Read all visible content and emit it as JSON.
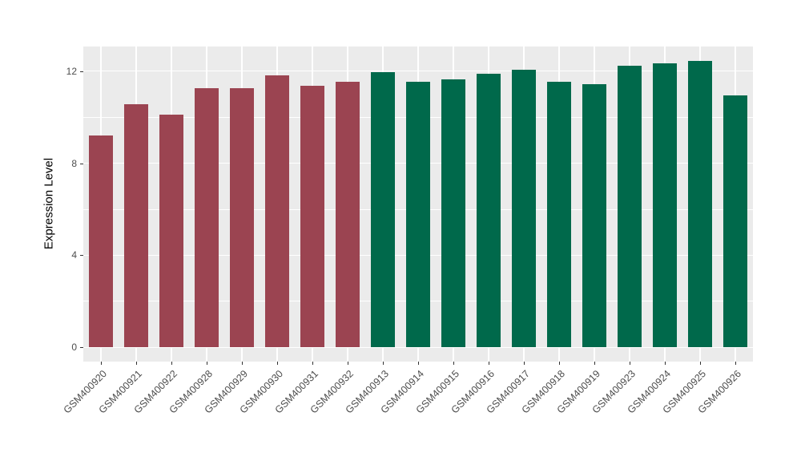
{
  "chart_data": {
    "type": "bar",
    "title": "",
    "xlabel": "",
    "ylabel": "Expression Level",
    "categories": [
      "GSM400920",
      "GSM400921",
      "GSM400922",
      "GSM400928",
      "GSM400929",
      "GSM400930",
      "GSM400931",
      "GSM400932",
      "GSM400913",
      "GSM400914",
      "GSM400915",
      "GSM400916",
      "GSM400917",
      "GSM400918",
      "GSM400919",
      "GSM400923",
      "GSM400924",
      "GSM400925",
      "GSM400926"
    ],
    "values": [
      9.2,
      10.55,
      10.1,
      11.25,
      11.25,
      11.8,
      11.35,
      11.55,
      11.95,
      11.55,
      11.65,
      11.9,
      12.05,
      11.55,
      11.45,
      12.25,
      12.35,
      12.45,
      10.95
    ],
    "groups": [
      "maroon",
      "maroon",
      "maroon",
      "maroon",
      "maroon",
      "maroon",
      "maroon",
      "maroon",
      "green",
      "green",
      "green",
      "green",
      "green",
      "green",
      "green",
      "green",
      "green",
      "green",
      "green"
    ],
    "group_colors": {
      "maroon": "#9B4451",
      "green": "#00694B"
    },
    "y_ticks_major": [
      0,
      4,
      8,
      12
    ],
    "y_ticks_minor": [
      2,
      6,
      10
    ],
    "y_axis_range": [
      -0.62,
      13.07
    ],
    "bar_width_fraction": 0.7,
    "x_label_rotation_deg": 45,
    "legend": "none",
    "grid": "horizontal major+minor, vertical major at category centers",
    "panel_bg": "#EBEBEB",
    "grid_color": "#FFFFFF",
    "tick_label_color": "#4D4D4D",
    "tick_mark_color": "#333333",
    "axis_title_color": "#000000"
  }
}
